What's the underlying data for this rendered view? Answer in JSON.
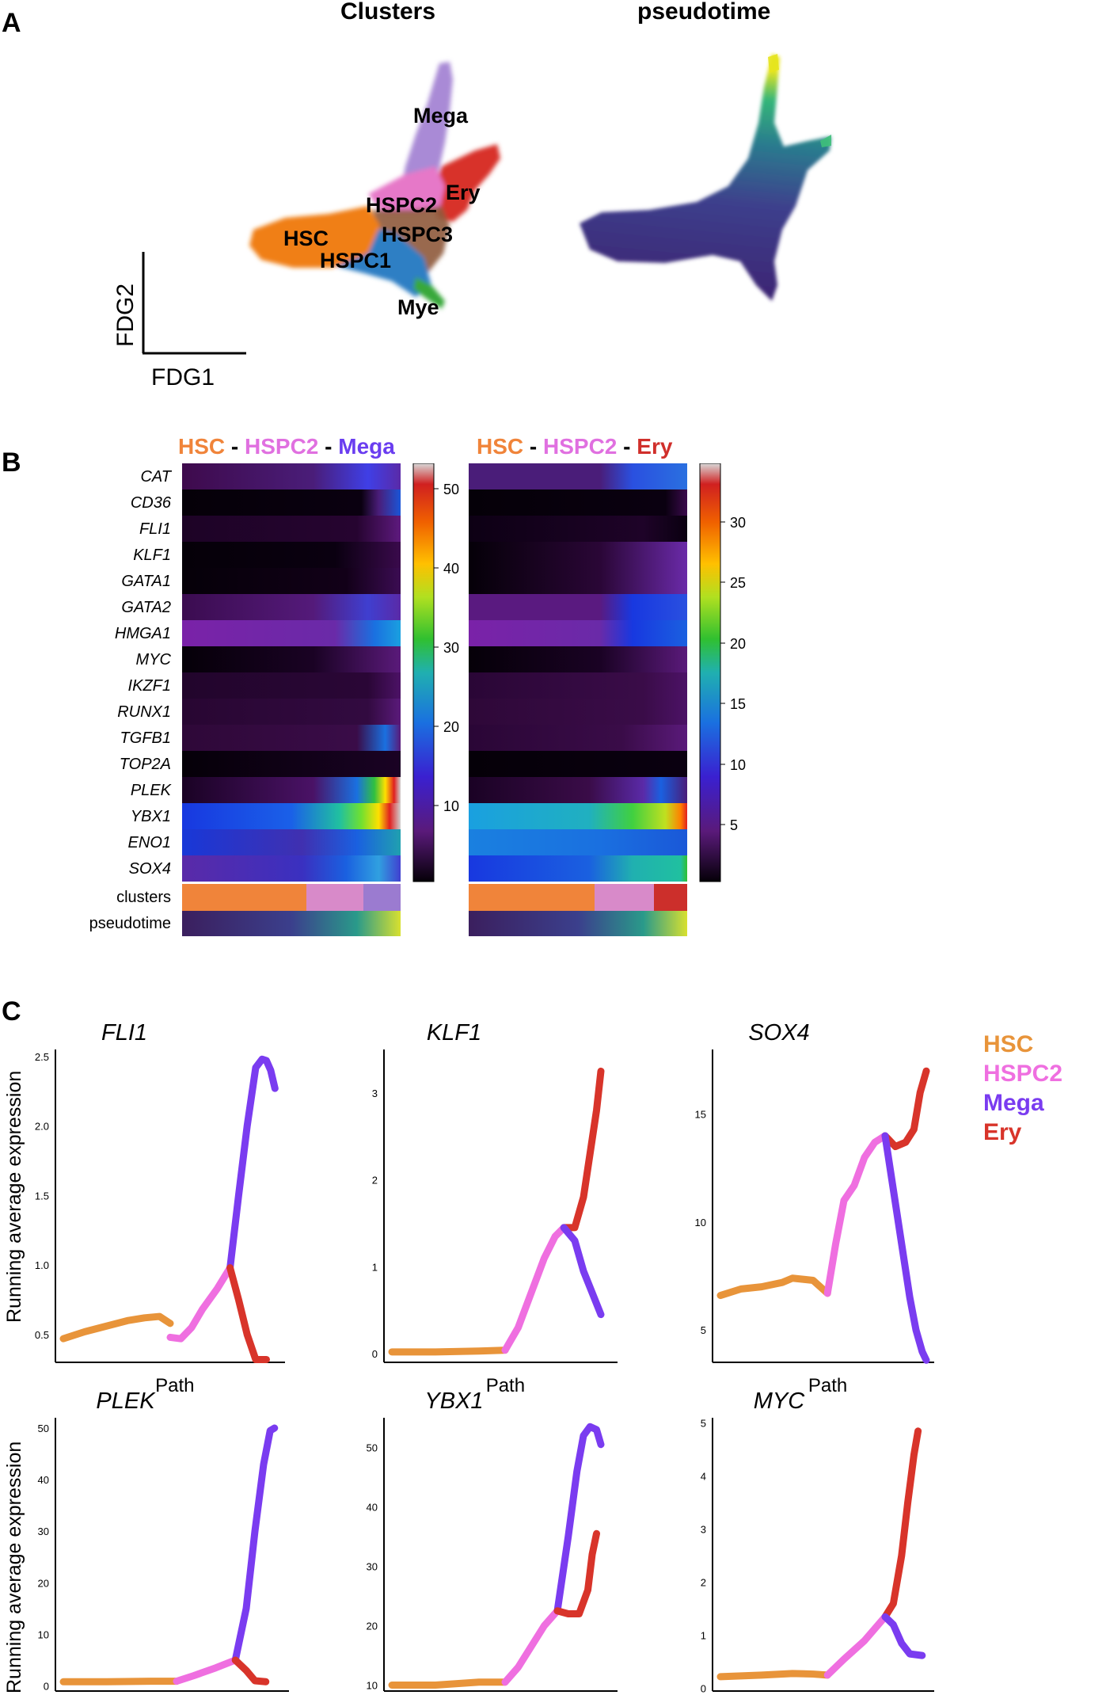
{
  "panels": {
    "a": "A",
    "b": "B",
    "c": "C"
  },
  "panel_a": {
    "titles": [
      "Clusters",
      "pseudotime"
    ],
    "axis_x": "FDG1",
    "axis_y": "FDG2",
    "cluster_labels": [
      "Mega",
      "Ery",
      "HSPC2",
      "HSC",
      "HSPC3",
      "HSPC1",
      "Mye"
    ],
    "colors": {
      "HSC": "#f07f17",
      "HSPC1": "#2d7fc4",
      "HSPC2": "#e678c8",
      "HSPC3": "#8e5a3c",
      "Mega": "#a98ad6",
      "Ery": "#d8322b",
      "Mye": "#38a83a"
    }
  },
  "panel_b": {
    "heatmap_left": {
      "parts": [
        "HSC",
        " - ",
        "HSPC2",
        " - ",
        "Mega"
      ]
    },
    "heatmap_right": {
      "parts": [
        "HSC",
        " - ",
        "HSPC2",
        " - ",
        "Ery"
      ]
    },
    "genes": [
      "CAT",
      "CD36",
      "FLI1",
      "KLF1",
      "GATA1",
      "GATA2",
      "HMGA1",
      "MYC",
      "IKZF1",
      "RUNX1",
      "TGFB1",
      "TOP2A",
      "PLEK",
      "YBX1",
      "ENO1",
      "SOX4"
    ],
    "row_labels": [
      "clusters",
      "pseudotime"
    ],
    "colorbar_left_ticks": [
      "50",
      "40",
      "30",
      "20",
      "10"
    ],
    "colorbar_right_ticks": [
      "30",
      "25",
      "20",
      "15",
      "10",
      "5"
    ],
    "cluster_colors": {
      "HSC": "#f0843a",
      "HSPC2": "#d88ac9",
      "Mega": "#9b7bd0",
      "Ery": "#cc2f2b"
    }
  },
  "panel_c": {
    "y_axis_label": "Running average expression",
    "x_axis_label": "Path",
    "legend": [
      {
        "name": "HSC",
        "color": "#e8943a"
      },
      {
        "name": "HSPC2",
        "color": "#ef6fe0"
      },
      {
        "name": "Mega",
        "color": "#7a3cf0"
      },
      {
        "name": "Ery",
        "color": "#d8342a"
      }
    ]
  },
  "chart_data": [
    {
      "type": "line",
      "title": "FLI1",
      "xlabel": "Path",
      "ylabel": "Running average expression",
      "yticks": [
        "0.5",
        "1.0",
        "1.5",
        "2.0",
        "2.5"
      ],
      "ylim": [
        0.3,
        2.55
      ],
      "series": [
        {
          "name": "HSC",
          "x": [
            0,
            0.1,
            0.2,
            0.3,
            0.38,
            0.45,
            0.5
          ],
          "y": [
            0.47,
            0.52,
            0.56,
            0.6,
            0.62,
            0.63,
            0.58
          ]
        },
        {
          "name": "HSPC2",
          "x": [
            0.5,
            0.55,
            0.6,
            0.65,
            0.72,
            0.78
          ],
          "y": [
            0.48,
            0.47,
            0.55,
            0.68,
            0.83,
            0.98
          ]
        },
        {
          "name": "Mega",
          "x": [
            0.78,
            0.82,
            0.86,
            0.9,
            0.93,
            0.95,
            0.97,
            0.99
          ],
          "y": [
            0.98,
            1.5,
            2.0,
            2.42,
            2.48,
            2.47,
            2.4,
            2.27
          ]
        },
        {
          "name": "Ery",
          "x": [
            0.78,
            0.82,
            0.86,
            0.9,
            0.95
          ],
          "y": [
            0.98,
            0.75,
            0.5,
            0.32,
            0.32
          ]
        }
      ]
    },
    {
      "type": "line",
      "title": "KLF1",
      "xlabel": "Path",
      "ylabel": "Running average expression",
      "yticks": [
        "0",
        "1",
        "2",
        "3"
      ],
      "ylim": [
        -0.1,
        3.5
      ],
      "series": [
        {
          "name": "HSC",
          "x": [
            0,
            0.2,
            0.4,
            0.52
          ],
          "y": [
            0.02,
            0.02,
            0.03,
            0.04
          ]
        },
        {
          "name": "HSPC2",
          "x": [
            0.52,
            0.58,
            0.64,
            0.7,
            0.75,
            0.79
          ],
          "y": [
            0.04,
            0.3,
            0.7,
            1.1,
            1.35,
            1.45
          ]
        },
        {
          "name": "Ery",
          "x": [
            0.79,
            0.84,
            0.88,
            0.91,
            0.94,
            0.96
          ],
          "y": [
            1.45,
            1.45,
            1.8,
            2.3,
            2.8,
            3.25
          ]
        },
        {
          "name": "Mega",
          "x": [
            0.79,
            0.84,
            0.88,
            0.92,
            0.96
          ],
          "y": [
            1.45,
            1.3,
            0.95,
            0.7,
            0.45
          ]
        }
      ]
    },
    {
      "type": "line",
      "title": "SOX4",
      "xlabel": "Path",
      "ylabel": "Running average expression",
      "yticks": [
        "5",
        "10",
        "15"
      ],
      "ylim": [
        3.5,
        18
      ],
      "series": [
        {
          "name": "HSC",
          "x": [
            0,
            0.1,
            0.2,
            0.3,
            0.35,
            0.45,
            0.52
          ],
          "y": [
            6.6,
            6.9,
            7.0,
            7.2,
            7.4,
            7.3,
            6.7
          ]
        },
        {
          "name": "HSPC2",
          "x": [
            0.52,
            0.56,
            0.6,
            0.65,
            0.7,
            0.75,
            0.8
          ],
          "y": [
            6.7,
            9.0,
            11.0,
            11.7,
            13.0,
            13.7,
            14.0
          ]
        },
        {
          "name": "Ery",
          "x": [
            0.8,
            0.85,
            0.9,
            0.94,
            0.97,
            1.0
          ],
          "y": [
            14.0,
            13.5,
            13.7,
            14.3,
            16.0,
            17.0
          ]
        },
        {
          "name": "Mega",
          "x": [
            0.8,
            0.84,
            0.88,
            0.92,
            0.95,
            0.98,
            1.0
          ],
          "y": [
            14.0,
            11.5,
            9.0,
            6.5,
            5.0,
            4.0,
            3.6
          ]
        }
      ]
    },
    {
      "type": "line",
      "title": "PLEK",
      "xlabel": "",
      "ylabel": "Running average expression",
      "yticks": [
        "0",
        "10",
        "20",
        "30",
        "40",
        "50"
      ],
      "ylim": [
        -1,
        52
      ],
      "series": [
        {
          "name": "HSC",
          "x": [
            0,
            0.2,
            0.4,
            0.52
          ],
          "y": [
            0.8,
            0.8,
            0.9,
            0.9
          ]
        },
        {
          "name": "HSPC2",
          "x": [
            0.52,
            0.6,
            0.7,
            0.79
          ],
          "y": [
            0.9,
            2.0,
            3.5,
            5.0
          ]
        },
        {
          "name": "Mega",
          "x": [
            0.79,
            0.84,
            0.88,
            0.92,
            0.95,
            0.97
          ],
          "y": [
            5.0,
            15.0,
            30.0,
            43.0,
            49.5,
            50.0
          ]
        },
        {
          "name": "Ery",
          "x": [
            0.79,
            0.84,
            0.88,
            0.93
          ],
          "y": [
            5.0,
            3.0,
            1.0,
            0.8
          ]
        }
      ]
    },
    {
      "type": "line",
      "title": "YBX1",
      "xlabel": "",
      "ylabel": "Running average expression",
      "yticks": [
        "10",
        "20",
        "30",
        "40",
        "50"
      ],
      "ylim": [
        9,
        55
      ],
      "series": [
        {
          "name": "HSC",
          "x": [
            0,
            0.2,
            0.4,
            0.52
          ],
          "y": [
            10.0,
            10.0,
            10.5,
            10.5
          ]
        },
        {
          "name": "HSPC2",
          "x": [
            0.52,
            0.58,
            0.64,
            0.7,
            0.76
          ],
          "y": [
            10.5,
            13.0,
            16.5,
            20.0,
            22.5
          ]
        },
        {
          "name": "Mega",
          "x": [
            0.76,
            0.81,
            0.85,
            0.88,
            0.91,
            0.94,
            0.96
          ],
          "y": [
            22.5,
            35.0,
            46.0,
            52.0,
            53.5,
            53.0,
            50.5
          ]
        },
        {
          "name": "Ery",
          "x": [
            0.76,
            0.81,
            0.86,
            0.9,
            0.92,
            0.94
          ],
          "y": [
            22.5,
            22.0,
            22.0,
            26.0,
            32.0,
            35.5
          ]
        }
      ]
    },
    {
      "type": "line",
      "title": "MYC",
      "xlabel": "",
      "ylabel": "Running average expression",
      "yticks": [
        "0",
        "1",
        "2",
        "3",
        "4",
        "5"
      ],
      "ylim": [
        -0.05,
        5.1
      ],
      "series": [
        {
          "name": "HSC",
          "x": [
            0,
            0.2,
            0.35,
            0.45,
            0.52
          ],
          "y": [
            0.22,
            0.25,
            0.28,
            0.27,
            0.25
          ]
        },
        {
          "name": "HSPC2",
          "x": [
            0.52,
            0.6,
            0.7,
            0.8
          ],
          "y": [
            0.25,
            0.55,
            0.9,
            1.35
          ]
        },
        {
          "name": "Ery",
          "x": [
            0.8,
            0.84,
            0.88,
            0.91,
            0.94,
            0.96
          ],
          "y": [
            1.35,
            1.6,
            2.5,
            3.5,
            4.4,
            4.85
          ]
        },
        {
          "name": "Mega",
          "x": [
            0.8,
            0.84,
            0.88,
            0.92,
            0.98
          ],
          "y": [
            1.35,
            1.2,
            0.85,
            0.65,
            0.62
          ]
        }
      ]
    }
  ]
}
